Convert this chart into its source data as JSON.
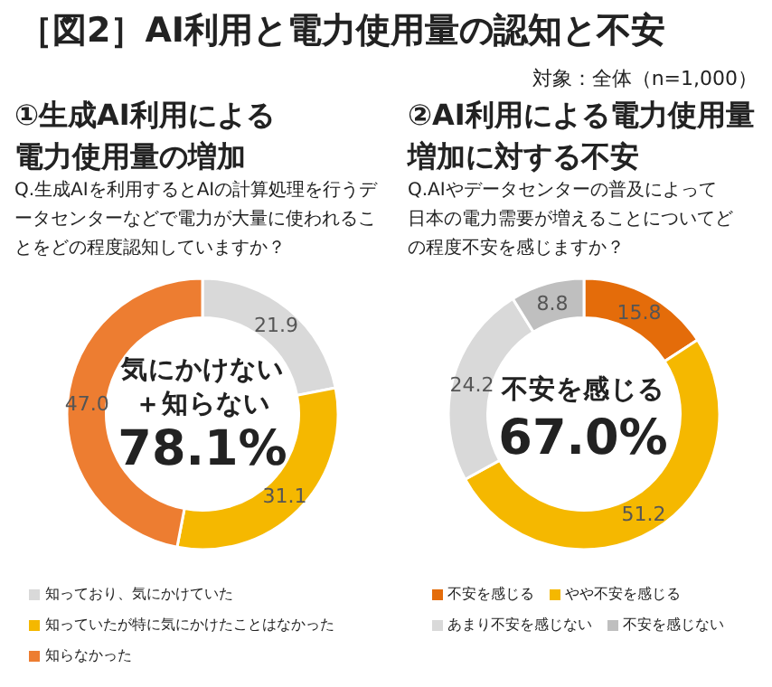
{
  "chart_data": [
    {
      "type": "donut",
      "title": "①生成AI利用による電力使用量の増加",
      "subtitle": "Q.生成AIを利用するとAIの計算処理を行うデータセンターなどで電力が大量に使われることをどの程度認知していますか？",
      "categories": [
        "知っており、気にかけていた",
        "知っていたが特に気にかけたことはなかった",
        "知らなかった"
      ],
      "values": [
        21.9,
        31.1,
        47.0
      ],
      "value_labels": [
        "21.9",
        "31.1",
        "47.0"
      ],
      "colors": [
        "#d9d9d9",
        "#f5b800",
        "#ed7d31"
      ],
      "legend": "bottom",
      "annotations": [
        "［図2］AI利用と電力使用量の認知と不安",
        "対象：全体（n=1,000）",
        "気にかけない＋知らない",
        "78.1%"
      ]
    },
    {
      "type": "donut",
      "title": "②AI利用による電力使用量増加に対する不安",
      "subtitle": "Q.AIやデータセンターの普及によって日本の電力需要が増えることについてどの程度不安を感じますか？",
      "categories": [
        "不安を感じる",
        "やや不安を感じる",
        "あまり不安を感じない",
        "不安を感じない"
      ],
      "values": [
        15.8,
        51.2,
        24.2,
        8.8
      ],
      "value_labels": [
        "15.8",
        "51.2",
        "24.2",
        "8.8"
      ],
      "colors": [
        "#e46c0a",
        "#f5b800",
        "#d9d9d9",
        "#bfbfbf"
      ],
      "legend": "bottom",
      "annotations": [
        "不安を感じる",
        "67.0%"
      ]
    }
  ]
}
